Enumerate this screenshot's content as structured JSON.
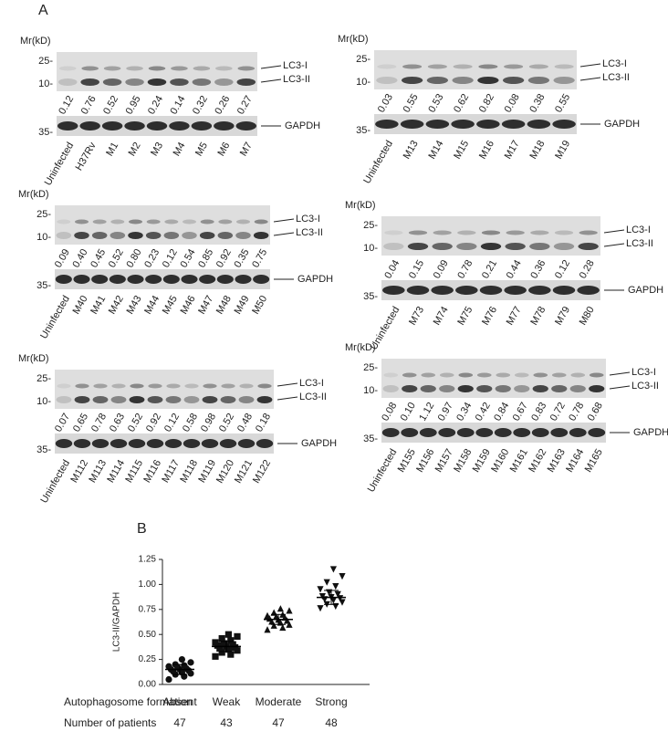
{
  "panel_a": {
    "label": "A",
    "blots": [
      {
        "mr": "Mr(kD)",
        "markers": [
          "25-",
          "10-"
        ],
        "loading_marker": "35-",
        "bands": [
          "LC3-I",
          "LC3-II"
        ],
        "loading": "GAPDH",
        "ratios": [
          "0.12",
          "0.76",
          "0.52",
          "0.95",
          "0.24",
          "0.14",
          "0.32",
          "0.26",
          "0.27"
        ],
        "lanes": [
          "Uninfected",
          "H37Rv",
          "M1",
          "M2",
          "M3",
          "M4",
          "M5",
          "M6",
          "M7"
        ]
      },
      {
        "mr": "Mr(kD)",
        "markers": [
          "25-",
          "10-"
        ],
        "loading_marker": "35-",
        "bands": [
          "LC3-I",
          "LC3-II"
        ],
        "loading": "GAPDH",
        "ratios": [
          "0.03",
          "0.55",
          "0.53",
          "0.62",
          "0.82",
          "0.08",
          "0.38",
          "0.55"
        ],
        "lanes": [
          "Uninfected",
          "M13",
          "M14",
          "M15",
          "M16",
          "M17",
          "M18",
          "M19"
        ]
      },
      {
        "mr": "Mr(kD)",
        "markers": [
          "25-",
          "10-"
        ],
        "loading_marker": "35-",
        "bands": [
          "LC3-I",
          "LC3-II"
        ],
        "loading": "GAPDH",
        "ratios": [
          "0.09",
          "0.40",
          "0.45",
          "0.52",
          "0.80",
          "0.23",
          "0.12",
          "0.54",
          "0.85",
          "0.92",
          "0.35",
          "0.75"
        ],
        "lanes": [
          "Uninfected",
          "M40",
          "M41",
          "M42",
          "M43",
          "M44",
          "M45",
          "M46",
          "M47",
          "M48",
          "M49",
          "M50"
        ]
      },
      {
        "mr": "Mr(kD)",
        "markers": [
          "25-",
          "10-"
        ],
        "loading_marker": "35-",
        "bands": [
          "LC3-I",
          "LC3-II"
        ],
        "loading": "GAPDH",
        "ratios": [
          "0.04",
          "0.15",
          "0.09",
          "0.78",
          "0.21",
          "0.44",
          "0.36",
          "0.12",
          "0.28"
        ],
        "lanes": [
          "Uninfected",
          "M73",
          "M74",
          "M75",
          "M76",
          "M77",
          "M78",
          "M79",
          "M80"
        ]
      },
      {
        "mr": "Mr(kD)",
        "markers": [
          "25-",
          "10-"
        ],
        "loading_marker": "35-",
        "bands": [
          "LC3-I",
          "LC3-II"
        ],
        "loading": "GAPDH",
        "ratios": [
          "0.07",
          "0.65",
          "0.78",
          "0.63",
          "0.52",
          "0.92",
          "0.12",
          "0.58",
          "0.98",
          "0.52",
          "0.48",
          "0.18"
        ],
        "lanes": [
          "Uninfected",
          "M112",
          "M113",
          "M114",
          "M115",
          "M116",
          "M117",
          "M118",
          "M119",
          "M120",
          "M121",
          "M122"
        ]
      },
      {
        "mr": "Mr(kD)",
        "markers": [
          "25-",
          "10-"
        ],
        "loading_marker": "35-",
        "bands": [
          "LC3-I",
          "LC3-II"
        ],
        "loading": "GAPDH",
        "ratios": [
          "0.08",
          "0.10",
          "1.12",
          "0.97",
          "0.34",
          "0.42",
          "0.84",
          "0.67",
          "0.83",
          "0.72",
          "0.78",
          "0.68"
        ],
        "lanes": [
          "Uninfected",
          "M155",
          "M156",
          "M157",
          "M158",
          "M159",
          "M160",
          "M161",
          "M162",
          "M163",
          "M164",
          "M165"
        ]
      }
    ]
  },
  "chart_data": {
    "type": "dotplot",
    "panel_label": "B",
    "y_label": "LC3-II/GAPDH",
    "categories": [
      "Absent",
      "Weak",
      "Moderate",
      "Strong"
    ],
    "groups": [
      {
        "marker": "circle",
        "mean": 0.15,
        "sd": 0.05,
        "values": [
          0.05,
          0.08,
          0.1,
          0.11,
          0.12,
          0.13,
          0.14,
          0.15,
          0.15,
          0.16,
          0.17,
          0.18,
          0.19,
          0.2,
          0.22,
          0.25
        ]
      },
      {
        "marker": "square",
        "mean": 0.38,
        "sd": 0.05,
        "values": [
          0.28,
          0.3,
          0.32,
          0.34,
          0.35,
          0.36,
          0.37,
          0.38,
          0.39,
          0.4,
          0.41,
          0.42,
          0.44,
          0.46,
          0.48,
          0.5
        ]
      },
      {
        "marker": "triangle-up",
        "mean": 0.65,
        "sd": 0.05,
        "values": [
          0.55,
          0.57,
          0.59,
          0.6,
          0.62,
          0.63,
          0.64,
          0.65,
          0.66,
          0.67,
          0.68,
          0.69,
          0.7,
          0.72,
          0.74,
          0.76
        ]
      },
      {
        "marker": "triangle-down",
        "mean": 0.87,
        "sd": 0.07,
        "values": [
          0.76,
          0.78,
          0.8,
          0.82,
          0.84,
          0.85,
          0.86,
          0.87,
          0.88,
          0.9,
          0.92,
          0.95,
          0.98,
          1.02,
          1.08,
          1.15
        ]
      }
    ],
    "color": "#111111",
    "ylim": [
      0,
      1.25
    ],
    "yticks": [
      {
        "value": 0,
        "label": "0.00"
      },
      {
        "value": 0.25,
        "label": "0.25"
      },
      {
        "value": 0.5,
        "label": "0.50"
      },
      {
        "value": 0.75,
        "label": "0.75"
      },
      {
        "value": 1,
        "label": "1.00"
      },
      {
        "value": 1.25,
        "label": "1.25"
      }
    ],
    "row_labels": [
      "Autophagosome formation",
      "Number of patients"
    ],
    "counts": [
      47,
      43,
      47,
      48
    ]
  }
}
